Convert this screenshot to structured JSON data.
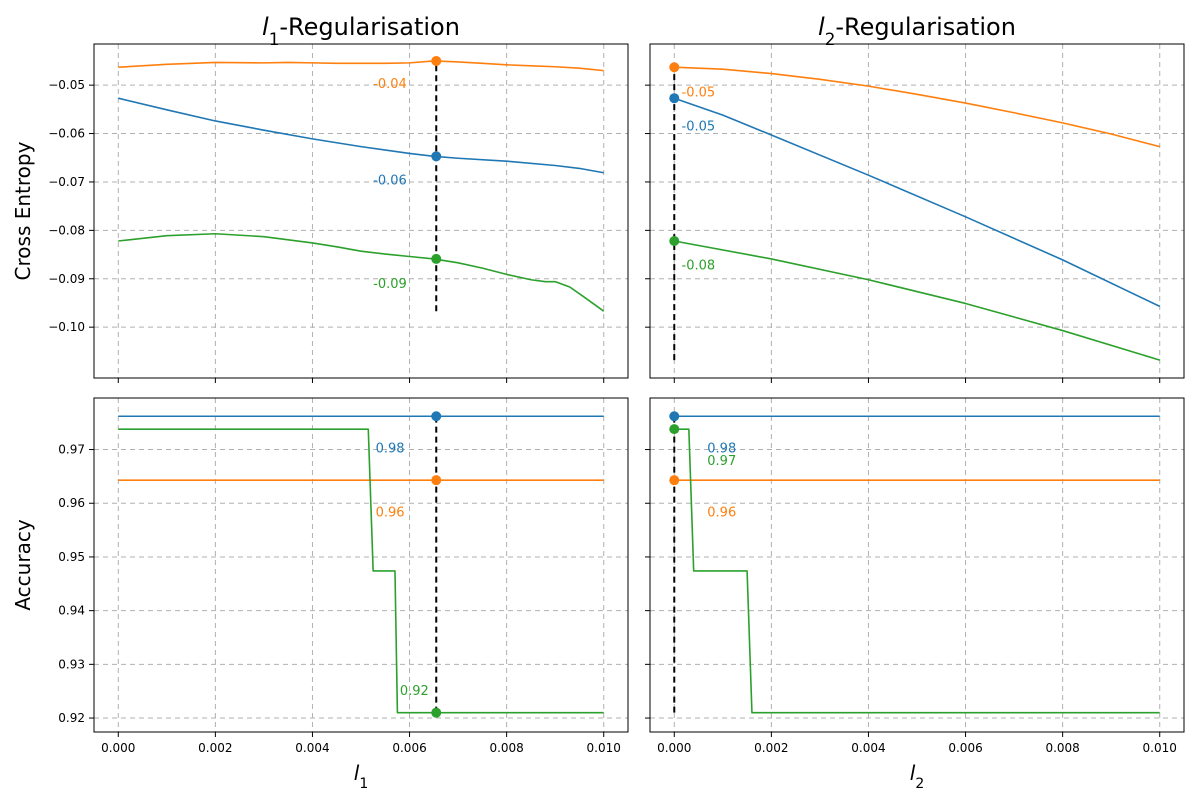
{
  "colors": {
    "series_blue": "#1f77b4",
    "series_orange": "#ff7f0e",
    "series_green": "#2ca02c",
    "marker_line": "#000000"
  },
  "chart_data": [
    {
      "id": "ce-l1",
      "type": "line",
      "title_var": "l",
      "title_sub": "1",
      "title_rest": "-Regularisation",
      "xlabel_var": "",
      "xlabel_sub": "",
      "ylabel": "Cross Entropy",
      "xlim": [
        -0.0005,
        0.0105
      ],
      "ylim": [
        -0.1105,
        -0.0415
      ],
      "xticks": [
        0,
        0.002,
        0.004,
        0.006,
        0.008,
        0.01
      ],
      "xtick_labels": [],
      "yticks": [
        -0.05,
        -0.06,
        -0.07,
        -0.08,
        -0.09,
        -0.1
      ],
      "ytick_labels": [
        "−0.05",
        "−0.06",
        "−0.07",
        "−0.08",
        "−0.09",
        "−0.10"
      ],
      "grid": true,
      "vline": {
        "x": 0.00655,
        "y0": -0.0967,
        "y1": -0.045
      },
      "series": [
        {
          "color": "#ff7f0e",
          "x": [
            0,
            0.001,
            0.002,
            0.003,
            0.0035,
            0.004,
            0.0045,
            0.005,
            0.0055,
            0.006,
            0.0065,
            0.007,
            0.0075,
            0.008,
            0.0085,
            0.009,
            0.0095,
            0.01
          ],
          "y": [
            -0.0463,
            -0.0457,
            -0.0453,
            -0.0454,
            -0.0453,
            -0.0454,
            -0.0455,
            -0.0455,
            -0.0455,
            -0.0454,
            -0.045,
            -0.0452,
            -0.0455,
            -0.0458,
            -0.046,
            -0.0462,
            -0.0465,
            -0.047
          ]
        },
        {
          "color": "#1f77b4",
          "x": [
            0,
            0.001,
            0.002,
            0.003,
            0.004,
            0.005,
            0.006,
            0.0065,
            0.007,
            0.008,
            0.009,
            0.0095,
            0.01
          ],
          "y": [
            -0.0527,
            -0.0551,
            -0.0574,
            -0.0593,
            -0.0611,
            -0.0627,
            -0.0641,
            -0.0647,
            -0.0651,
            -0.0657,
            -0.0666,
            -0.0672,
            -0.0681
          ]
        },
        {
          "color": "#2ca02c",
          "x": [
            0,
            0.001,
            0.002,
            0.003,
            0.004,
            0.0045,
            0.005,
            0.0055,
            0.006,
            0.0065,
            0.007,
            0.0075,
            0.008,
            0.0085,
            0.0088,
            0.009,
            0.0093,
            0.0096,
            0.01
          ],
          "y": [
            -0.0822,
            -0.0811,
            -0.0807,
            -0.0813,
            -0.0826,
            -0.0834,
            -0.0843,
            -0.0849,
            -0.0854,
            -0.0859,
            -0.0867,
            -0.0878,
            -0.0891,
            -0.0902,
            -0.0906,
            -0.0906,
            -0.0917,
            -0.0938,
            -0.0967
          ]
        }
      ],
      "points": [
        {
          "color": "#ff7f0e",
          "x": 0.00655,
          "y": -0.045
        },
        {
          "color": "#1f77b4",
          "x": 0.00655,
          "y": -0.0647
        },
        {
          "color": "#2ca02c",
          "x": 0.00655,
          "y": -0.0859
        }
      ],
      "annotations": [
        {
          "text": "-0.04",
          "color": "#ff7f0e",
          "x": 0.00525,
          "y": -0.0498
        },
        {
          "text": "-0.06",
          "color": "#1f77b4",
          "x": 0.00525,
          "y": -0.0697
        },
        {
          "text": "-0.09",
          "color": "#2ca02c",
          "x": 0.00525,
          "y": -0.0911
        }
      ]
    },
    {
      "id": "ce-l2",
      "type": "line",
      "title_var": "l",
      "title_sub": "2",
      "title_rest": "-Regularisation",
      "xlabel_var": "",
      "xlabel_sub": "",
      "ylabel": "",
      "xlim": [
        -0.0005,
        0.0105
      ],
      "ylim": [
        -0.1105,
        -0.0415
      ],
      "xticks": [
        0,
        0.002,
        0.004,
        0.006,
        0.008,
        0.01
      ],
      "xtick_labels": [],
      "yticks": [
        -0.05,
        -0.06,
        -0.07,
        -0.08,
        -0.09,
        -0.1
      ],
      "ytick_labels": [],
      "grid": true,
      "vline": {
        "x": 0,
        "y0": -0.1068,
        "y1": -0.0463
      },
      "series": [
        {
          "color": "#ff7f0e",
          "x": [
            0,
            0.001,
            0.002,
            0.003,
            0.004,
            0.005,
            0.006,
            0.007,
            0.008,
            0.009,
            0.01
          ],
          "y": [
            -0.0463,
            -0.0467,
            -0.0476,
            -0.0488,
            -0.0502,
            -0.0519,
            -0.0537,
            -0.0557,
            -0.0578,
            -0.0601,
            -0.0627
          ]
        },
        {
          "color": "#1f77b4",
          "x": [
            0,
            0.001,
            0.002,
            0.004,
            0.006,
            0.008,
            0.01
          ],
          "y": [
            -0.0527,
            -0.0562,
            -0.0603,
            -0.0686,
            -0.0772,
            -0.0861,
            -0.0957
          ]
        },
        {
          "color": "#2ca02c",
          "x": [
            0,
            0.002,
            0.004,
            0.006,
            0.008,
            0.01
          ],
          "y": [
            -0.0822,
            -0.0859,
            -0.0902,
            -0.0951,
            -0.1007,
            -0.1068
          ]
        }
      ],
      "points": [
        {
          "color": "#ff7f0e",
          "x": 0,
          "y": -0.0463
        },
        {
          "color": "#1f77b4",
          "x": 0,
          "y": -0.0527
        },
        {
          "color": "#2ca02c",
          "x": 0,
          "y": -0.0822
        }
      ],
      "annotations": [
        {
          "text": "-0.05",
          "color": "#ff7f0e",
          "x": 0.00015,
          "y": -0.0515
        },
        {
          "text": "-0.05",
          "color": "#1f77b4",
          "x": 0.00015,
          "y": -0.0585
        },
        {
          "text": "-0.08",
          "color": "#2ca02c",
          "x": 0.00015,
          "y": -0.0873
        }
      ]
    },
    {
      "id": "acc-l1",
      "type": "line",
      "title_var": "",
      "title_sub": "",
      "title_rest": "",
      "xlabel_var": "l",
      "xlabel_sub": "1",
      "ylabel": "Accuracy",
      "xlim": [
        -0.0005,
        0.0105
      ],
      "ylim": [
        0.9174,
        0.9796
      ],
      "xticks": [
        0,
        0.002,
        0.004,
        0.006,
        0.008,
        0.01
      ],
      "xtick_labels": [
        "0.000",
        "0.002",
        "0.004",
        "0.006",
        "0.008",
        "0.010"
      ],
      "yticks": [
        0.97,
        0.96,
        0.95,
        0.94,
        0.93,
        0.92
      ],
      "ytick_labels": [
        "0.97",
        "0.96",
        "0.95",
        "0.94",
        "0.93",
        "0.92"
      ],
      "grid": true,
      "vline": {
        "x": 0.00655,
        "y0": 0.921,
        "y1": 0.9762
      },
      "series": [
        {
          "color": "#1f77b4",
          "x": [
            0,
            0.01
          ],
          "y": [
            0.9762,
            0.9762
          ]
        },
        {
          "color": "#ff7f0e",
          "x": [
            0,
            0.01
          ],
          "y": [
            0.9643,
            0.9643
          ]
        },
        {
          "color": "#2ca02c",
          "x": [
            0,
            0.00515,
            0.00525,
            0.0057,
            0.00575,
            0.01
          ],
          "y": [
            0.9738,
            0.9738,
            0.9474,
            0.9474,
            0.921,
            0.921
          ]
        }
      ],
      "points": [
        {
          "color": "#1f77b4",
          "x": 0.00655,
          "y": 0.9762
        },
        {
          "color": "#ff7f0e",
          "x": 0.00655,
          "y": 0.9643
        },
        {
          "color": "#2ca02c",
          "x": 0.00655,
          "y": 0.921
        }
      ],
      "annotations": [
        {
          "text": "0.98",
          "color": "#1f77b4",
          "x": 0.0053,
          "y": 0.9702
        },
        {
          "text": "0.96",
          "color": "#ff7f0e",
          "x": 0.0053,
          "y": 0.9583
        },
        {
          "text": "0.92",
          "color": "#2ca02c",
          "x": 0.0058,
          "y": 0.925
        }
      ]
    },
    {
      "id": "acc-l2",
      "type": "line",
      "title_var": "",
      "title_sub": "",
      "title_rest": "",
      "xlabel_var": "l",
      "xlabel_sub": "2",
      "ylabel": "",
      "xlim": [
        -0.0005,
        0.0105
      ],
      "ylim": [
        0.9174,
        0.9796
      ],
      "xticks": [
        0,
        0.002,
        0.004,
        0.006,
        0.008,
        0.01
      ],
      "xtick_labels": [
        "0.000",
        "0.002",
        "0.004",
        "0.006",
        "0.008",
        "0.010"
      ],
      "yticks": [
        0.97,
        0.96,
        0.95,
        0.94,
        0.93,
        0.92
      ],
      "ytick_labels": [],
      "grid": true,
      "vline": {
        "x": 0,
        "y0": 0.921,
        "y1": 0.9762
      },
      "series": [
        {
          "color": "#1f77b4",
          "x": [
            0,
            0.01
          ],
          "y": [
            0.9762,
            0.9762
          ]
        },
        {
          "color": "#ff7f0e",
          "x": [
            0,
            0.01
          ],
          "y": [
            0.9643,
            0.9643
          ]
        },
        {
          "color": "#2ca02c",
          "x": [
            0,
            0.0003,
            0.0004,
            0.0015,
            0.0016,
            0.01
          ],
          "y": [
            0.9738,
            0.9738,
            0.9474,
            0.9474,
            0.921,
            0.921
          ]
        }
      ],
      "points": [
        {
          "color": "#1f77b4",
          "x": 0,
          "y": 0.9762
        },
        {
          "color": "#2ca02c",
          "x": 0,
          "y": 0.9738
        },
        {
          "color": "#ff7f0e",
          "x": 0,
          "y": 0.9643
        }
      ],
      "annotations": [
        {
          "text": "0.98",
          "color": "#1f77b4",
          "x": 0.00068,
          "y": 0.9702
        },
        {
          "text": "0.97",
          "color": "#2ca02c",
          "x": 0.00068,
          "y": 0.9679
        },
        {
          "text": "0.96",
          "color": "#ff7f0e",
          "x": 0.00068,
          "y": 0.9583
        }
      ]
    }
  ]
}
